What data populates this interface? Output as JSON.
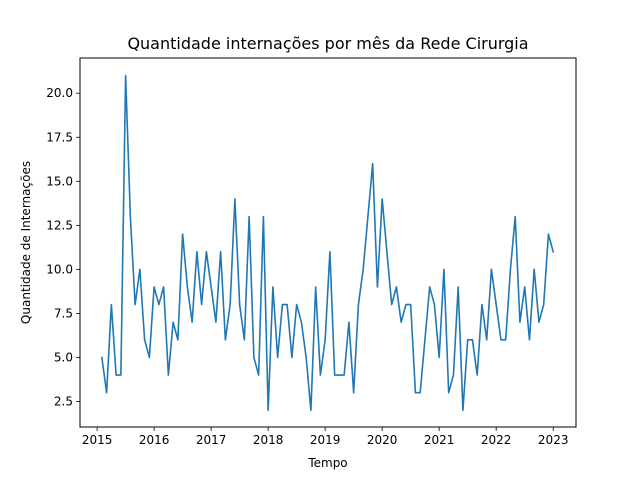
{
  "chart_data": {
    "type": "line",
    "title": "Quantidade internações por mês da Rede Cirurgia",
    "xlabel": "Tempo",
    "ylabel": "Quantidade de Internações",
    "xlim": [
      2014.7,
      2023.4
    ],
    "ylim": [
      1.05,
      22.0
    ],
    "x_ticks": [
      2015,
      2016,
      2017,
      2018,
      2019,
      2020,
      2021,
      2022,
      2023
    ],
    "x_tick_labels": [
      "2015",
      "2016",
      "2017",
      "2018",
      "2019",
      "2020",
      "2021",
      "2022",
      "2023"
    ],
    "y_ticks": [
      2.5,
      5.0,
      7.5,
      10.0,
      12.5,
      15.0,
      17.5,
      20.0
    ],
    "y_tick_labels": [
      "2.5",
      "5.0",
      "7.5",
      "10.0",
      "12.5",
      "15.0",
      "17.5",
      "20.0"
    ],
    "grid": false,
    "line_color": "#1f77b4",
    "series": [
      {
        "x": [
          "2015-02",
          "2015-03",
          "2015-04",
          "2015-05",
          "2015-06",
          "2015-07",
          "2015-08",
          "2015-09",
          "2015-10",
          "2015-11",
          "2015-12",
          "2016-01",
          "2016-02",
          "2016-03",
          "2016-04",
          "2016-05",
          "2016-06",
          "2016-07",
          "2016-08",
          "2016-09",
          "2016-10",
          "2016-11",
          "2016-12",
          "2017-01",
          "2017-02",
          "2017-03",
          "2017-04",
          "2017-05",
          "2017-06",
          "2017-07",
          "2017-08",
          "2017-09",
          "2017-10",
          "2017-11",
          "2017-12",
          "2018-01",
          "2018-02",
          "2018-03",
          "2018-04",
          "2018-05",
          "2018-06",
          "2018-07",
          "2018-08",
          "2018-09",
          "2018-10",
          "2018-11",
          "2018-12",
          "2019-01",
          "2019-02",
          "2019-03",
          "2019-04",
          "2019-05",
          "2019-06",
          "2019-07",
          "2019-08",
          "2019-09",
          "2019-10",
          "2019-11",
          "2019-12",
          "2020-01",
          "2020-02",
          "2020-03",
          "2020-04",
          "2020-05",
          "2020-06",
          "2020-07",
          "2020-08",
          "2020-09",
          "2020-10",
          "2020-11",
          "2020-12",
          "2021-01",
          "2021-02",
          "2021-03",
          "2021-04",
          "2021-05",
          "2021-06",
          "2021-07",
          "2021-08",
          "2021-09",
          "2021-10",
          "2021-11",
          "2021-12",
          "2022-01",
          "2022-02",
          "2022-03",
          "2022-04",
          "2022-05",
          "2022-06",
          "2022-07",
          "2022-08",
          "2022-09",
          "2022-10",
          "2022-11",
          "2022-12",
          "2023-01"
        ],
        "values": [
          5,
          3,
          8,
          4,
          4,
          21,
          13,
          8,
          10,
          6,
          5,
          9,
          8,
          9,
          4,
          7,
          6,
          12,
          9,
          7,
          11,
          8,
          11,
          9,
          7,
          11,
          6,
          8,
          14,
          8,
          6,
          13,
          5,
          4,
          13,
          2,
          9,
          5,
          8,
          8,
          5,
          8,
          7,
          5,
          2,
          9,
          4,
          6,
          11,
          4,
          4,
          4,
          7,
          3,
          8,
          10,
          13,
          16,
          9,
          14,
          11,
          8,
          9,
          7,
          8,
          8,
          3,
          3,
          6,
          9,
          8,
          5,
          10,
          3,
          4,
          9,
          2,
          6,
          6,
          4,
          8,
          6,
          10,
          8,
          6,
          6,
          10,
          13,
          7,
          9,
          6,
          10,
          7,
          8,
          12,
          11
        ]
      }
    ]
  }
}
